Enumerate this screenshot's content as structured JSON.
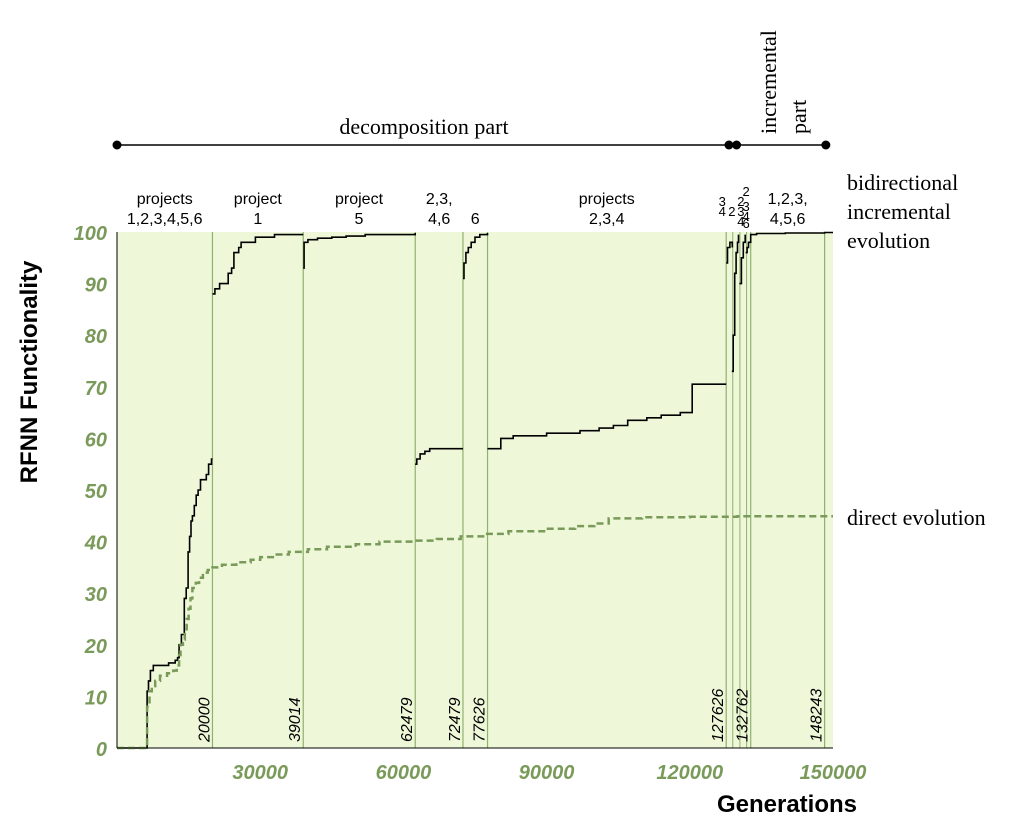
{
  "chart_data": {
    "type": "line",
    "xlabel": "Generations",
    "ylabel": "RFNN Functionality",
    "xlim": [
      0,
      150000
    ],
    "ylim": [
      0,
      100
    ],
    "x_ticks": [
      30000,
      60000,
      90000,
      120000,
      150000
    ],
    "y_ticks": [
      0,
      10,
      20,
      30,
      40,
      50,
      60,
      70,
      80,
      90,
      100
    ],
    "background_color": "#eef8d8",
    "axis_tick_color": "#7a9a5a",
    "grid": false,
    "stage_boundaries": [
      20000,
      39014,
      62479,
      72479,
      77626,
      127626,
      132762,
      148243
    ],
    "stage_boundary_extra": [
      129000,
      130500,
      131900
    ],
    "stage_labels": [
      {
        "lines": [
          "projects",
          "1,2,3,4,5,6"
        ],
        "x_center": 10000
      },
      {
        "lines": [
          "project",
          "1"
        ],
        "x_center": 29500
      },
      {
        "lines": [
          "project",
          "5"
        ],
        "x_center": 50700
      },
      {
        "lines": [
          "2,3,",
          "4,6"
        ],
        "x_center": 67500
      },
      {
        "lines": [
          "6"
        ],
        "x_center": 75050
      },
      {
        "lines": [
          "projects",
          "2,3,4"
        ],
        "x_center": 102600
      },
      {
        "lines": [
          "1,2,3,",
          "4,5,6"
        ],
        "x_center": 140500
      }
    ],
    "stage_labels_small": [
      {
        "text": "3",
        "x": 126800,
        "y_line": 0
      },
      {
        "text": "4",
        "x": 126800,
        "y_line": 1
      },
      {
        "text": "2",
        "x": 128800,
        "y_line": 1
      },
      {
        "text": "2",
        "x": 130700,
        "y_line": 0
      },
      {
        "text": "2",
        "x": 131800,
        "y_line": -1
      },
      {
        "text": "3",
        "x": 130700,
        "y_line": 1
      },
      {
        "text": "3",
        "x": 131800,
        "y_line": 0.5
      },
      {
        "text": "4",
        "x": 130700,
        "y_line": 2
      },
      {
        "text": "4",
        "x": 131800,
        "y_line": 1.5
      },
      {
        "text": "6",
        "x": 131800,
        "y_line": 2.2
      }
    ],
    "top_annotation": {
      "decomposition": {
        "label": "decomposition part",
        "x_start": 0,
        "x_end": 128200
      },
      "incremental": {
        "label_lines": [
          "incremental",
          "part"
        ],
        "x_start": 129800,
        "x_end": 148500
      }
    },
    "side_labels": {
      "bidirectional": [
        "bidirectional",
        "incremental",
        "evolution"
      ],
      "direct": "direct evolution"
    },
    "series": [
      {
        "name": "bidirectional incremental evolution",
        "color": "#000000",
        "style": "solid",
        "segments": [
          [
            [
              0,
              0
            ],
            [
              6000,
              0
            ],
            [
              6300,
              11
            ],
            [
              6600,
              13
            ],
            [
              7000,
              15
            ],
            [
              7600,
              16
            ],
            [
              10500,
              16
            ],
            [
              10800,
              16.5
            ],
            [
              11800,
              16.5
            ],
            [
              12200,
              17
            ],
            [
              12700,
              17.5
            ],
            [
              13000,
              20
            ],
            [
              13500,
              22
            ],
            [
              14100,
              29
            ],
            [
              14500,
              31
            ],
            [
              14900,
              38
            ],
            [
              15200,
              41
            ],
            [
              15500,
              44
            ],
            [
              15800,
              45
            ],
            [
              16200,
              47
            ],
            [
              16600,
              49
            ],
            [
              17000,
              50
            ],
            [
              17500,
              52
            ],
            [
              18300,
              52
            ],
            [
              18700,
              53
            ],
            [
              19200,
              55
            ],
            [
              19800,
              56
            ],
            [
              20000,
              56
            ]
          ],
          [
            [
              20000,
              88
            ],
            [
              20500,
              89
            ],
            [
              21500,
              90
            ],
            [
              23000,
              90
            ],
            [
              23300,
              92
            ],
            [
              24000,
              93
            ],
            [
              24500,
              96
            ],
            [
              25500,
              97
            ],
            [
              26000,
              98
            ],
            [
              28000,
              98
            ],
            [
              29000,
              99
            ],
            [
              32000,
              99
            ],
            [
              33000,
              99.5
            ],
            [
              39014,
              99.5
            ]
          ],
          [
            [
              39014,
              93
            ],
            [
              39200,
              98
            ],
            [
              40000,
              98.5
            ],
            [
              42000,
              98.8
            ],
            [
              45000,
              99
            ],
            [
              48000,
              99.2
            ],
            [
              52000,
              99.5
            ],
            [
              62479,
              99.8
            ]
          ],
          [
            [
              62479,
              55
            ],
            [
              62800,
              56
            ],
            [
              63500,
              57
            ],
            [
              64500,
              57.5
            ],
            [
              65500,
              58
            ],
            [
              72479,
              58
            ]
          ],
          [
            [
              72479,
              91
            ],
            [
              72700,
              94
            ],
            [
              73100,
              96
            ],
            [
              73600,
              97
            ],
            [
              74200,
              98
            ],
            [
              75000,
              99
            ],
            [
              76000,
              99.5
            ],
            [
              77626,
              99.8
            ]
          ],
          [
            [
              77626,
              58
            ],
            [
              80000,
              58
            ],
            [
              80400,
              60
            ],
            [
              83000,
              60.5
            ],
            [
              86000,
              60.5
            ],
            [
              90000,
              61
            ],
            [
              94000,
              61
            ],
            [
              97000,
              61.5
            ],
            [
              101000,
              62
            ],
            [
              104000,
              62.5
            ],
            [
              107000,
              63.5
            ],
            [
              111000,
              64
            ],
            [
              114000,
              64.5
            ],
            [
              118000,
              65
            ],
            [
              120500,
              70.5
            ],
            [
              127626,
              70.5
            ]
          ],
          [
            [
              127626,
              94
            ],
            [
              127900,
              97
            ],
            [
              128400,
              98
            ],
            [
              128900,
              97
            ]
          ],
          [
            [
              128800,
              73
            ],
            [
              129100,
              80
            ],
            [
              129400,
              92
            ],
            [
              129700,
              96
            ],
            [
              130000,
              98
            ],
            [
              130200,
              99.5
            ]
          ],
          [
            [
              130400,
              90
            ],
            [
              130800,
              95
            ],
            [
              131200,
              98
            ],
            [
              131600,
              99.5
            ]
          ],
          [
            [
              131700,
              96
            ],
            [
              132000,
              97
            ],
            [
              132300,
              98
            ],
            [
              132762,
              99.5
            ],
            [
              134000,
              99.7
            ],
            [
              140000,
              99.8
            ],
            [
              148243,
              99.9
            ],
            [
              150000,
              99.9
            ]
          ]
        ]
      },
      {
        "name": "direct evolution",
        "color": "#7a9a5a",
        "style": "dashed",
        "points": [
          [
            0,
            0
          ],
          [
            6000,
            0
          ],
          [
            6300,
            8
          ],
          [
            6800,
            11
          ],
          [
            7300,
            12
          ],
          [
            8000,
            13
          ],
          [
            9000,
            14
          ],
          [
            10500,
            14.5
          ],
          [
            11800,
            15
          ],
          [
            12500,
            16
          ],
          [
            13000,
            18
          ],
          [
            13300,
            20
          ],
          [
            13800,
            21
          ],
          [
            14200,
            23
          ],
          [
            14600,
            25
          ],
          [
            15000,
            27
          ],
          [
            15400,
            29
          ],
          [
            15800,
            31
          ],
          [
            16500,
            32
          ],
          [
            17200,
            33
          ],
          [
            18000,
            34
          ],
          [
            19000,
            34.5
          ],
          [
            20000,
            35
          ],
          [
            22000,
            35.5
          ],
          [
            25000,
            36
          ],
          [
            28000,
            36.5
          ],
          [
            30000,
            37
          ],
          [
            33000,
            37.5
          ],
          [
            36000,
            38
          ],
          [
            40000,
            38.5
          ],
          [
            44000,
            39
          ],
          [
            50000,
            39.5
          ],
          [
            55000,
            40
          ],
          [
            62000,
            40.2
          ],
          [
            67000,
            40.5
          ],
          [
            72000,
            41
          ],
          [
            77000,
            41.5
          ],
          [
            82000,
            42
          ],
          [
            90000,
            42.5
          ],
          [
            96000,
            43
          ],
          [
            100000,
            43.5
          ],
          [
            103000,
            44.5
          ],
          [
            110000,
            44.7
          ],
          [
            120000,
            44.8
          ],
          [
            130000,
            44.9
          ],
          [
            140000,
            44.9
          ],
          [
            150000,
            44.9
          ]
        ]
      }
    ]
  }
}
